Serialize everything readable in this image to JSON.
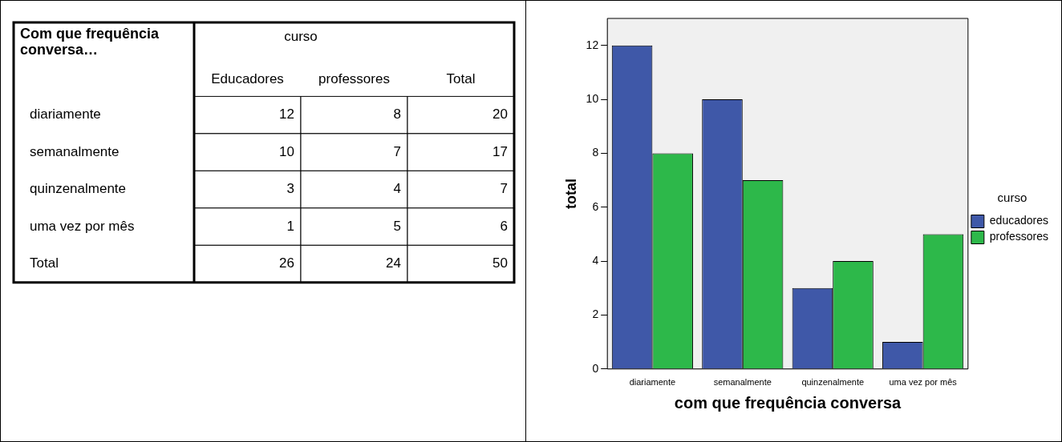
{
  "chart_data": [
    {
      "type": "heatmap",
      "title": "Com que frequência conversa…",
      "xlabel": "curso",
      "categories": [
        "Educadores",
        "professores",
        "Total"
      ],
      "y_categories": [
        "diariamente",
        "semanalmente",
        "quinzenalmente",
        "uma vez por mês",
        "Total"
      ],
      "cells": [
        [
          12,
          8,
          20
        ],
        [
          10,
          7,
          17
        ],
        [
          3,
          4,
          7
        ],
        [
          1,
          5,
          6
        ],
        [
          26,
          24,
          50
        ]
      ],
      "data_labels": true
    },
    {
      "type": "bar",
      "xlabel": "com que frequência conversa",
      "ylabel": "total",
      "legend_title": "curso",
      "categories": [
        "diariamente",
        "semanalmente",
        "quinzenalmente",
        "uma vez por mês"
      ],
      "series": [
        {
          "name": "educadores",
          "color": "#3f58a8",
          "values": [
            12,
            10,
            3,
            1
          ]
        },
        {
          "name": "professores",
          "color": "#2db84a",
          "values": [
            8,
            7,
            4,
            5
          ]
        }
      ],
      "ylim": [
        0,
        13
      ],
      "yticks": [
        0,
        2,
        4,
        6,
        8,
        10,
        12
      ],
      "legend": "right"
    }
  ]
}
